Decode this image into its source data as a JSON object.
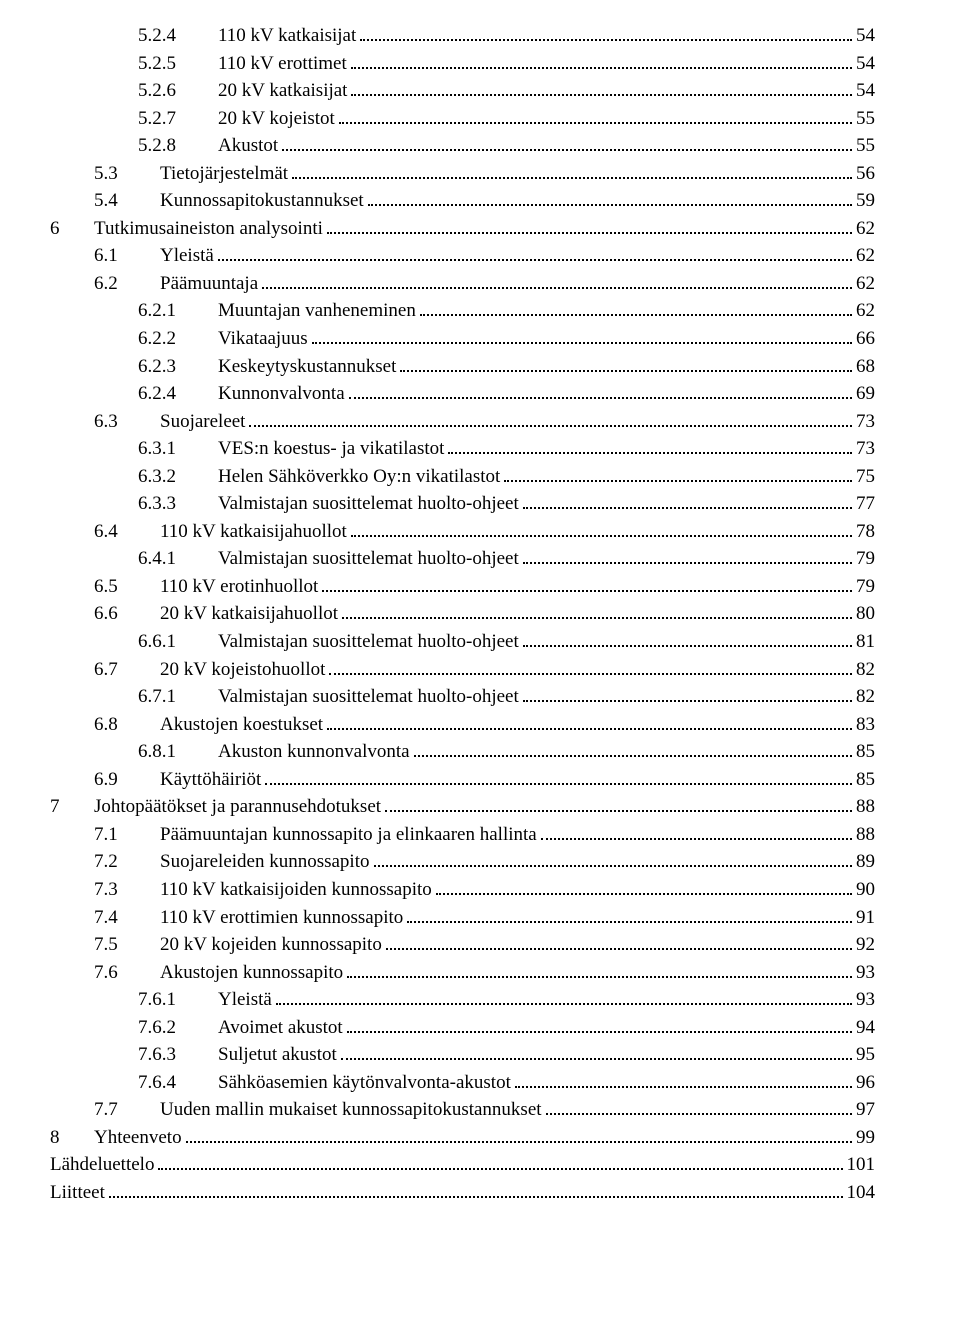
{
  "fontFamily": "Times New Roman",
  "baseFontSize": 19,
  "textColor": "#000000",
  "backgroundColor": "#ffffff",
  "toc": [
    {
      "level": 2,
      "num": "5.2.4",
      "title": "110 kV katkaisijat",
      "page": 54
    },
    {
      "level": 2,
      "num": "5.2.5",
      "title": "110 kV erottimet",
      "page": 54
    },
    {
      "level": 2,
      "num": "5.2.6",
      "title": "20 kV katkaisijat",
      "page": 54
    },
    {
      "level": 2,
      "num": "5.2.7",
      "title": "20 kV kojeistot",
      "page": 55
    },
    {
      "level": 2,
      "num": "5.2.8",
      "title": "Akustot",
      "page": 55
    },
    {
      "level": 1,
      "num": "5.3",
      "title": "Tietojärjestelmät",
      "page": 56
    },
    {
      "level": 1,
      "num": "5.4",
      "title": "Kunnossapitokustannukset",
      "page": 59
    },
    {
      "level": 0,
      "num": "6",
      "title": "Tutkimusaineiston analysointi",
      "page": 62
    },
    {
      "level": 1,
      "num": "6.1",
      "title": "Yleistä",
      "page": 62
    },
    {
      "level": 1,
      "num": "6.2",
      "title": "Päämuuntaja",
      "page": 62
    },
    {
      "level": 2,
      "num": "6.2.1",
      "title": "Muuntajan vanheneminen",
      "page": 62
    },
    {
      "level": 2,
      "num": "6.2.2",
      "title": "Vikataajuus",
      "page": 66
    },
    {
      "level": 2,
      "num": "6.2.3",
      "title": "Keskeytyskustannukset",
      "page": 68
    },
    {
      "level": 2,
      "num": "6.2.4",
      "title": "Kunnonvalvonta",
      "page": 69
    },
    {
      "level": 1,
      "num": "6.3",
      "title": "Suojareleet",
      "page": 73
    },
    {
      "level": 2,
      "num": "6.3.1",
      "title": "VES:n koestus- ja vikatilastot",
      "page": 73
    },
    {
      "level": 2,
      "num": "6.3.2",
      "title": "Helen Sähköverkko Oy:n vikatilastot",
      "page": 75
    },
    {
      "level": 2,
      "num": "6.3.3",
      "title": "Valmistajan suosittelemat huolto-ohjeet",
      "page": 77
    },
    {
      "level": 1,
      "num": "6.4",
      "title": "110 kV katkaisijahuollot",
      "page": 78
    },
    {
      "level": 2,
      "num": "6.4.1",
      "title": "Valmistajan suosittelemat huolto-ohjeet",
      "page": 79
    },
    {
      "level": 1,
      "num": "6.5",
      "title": "110 kV erotinhuollot",
      "page": 79
    },
    {
      "level": 1,
      "num": "6.6",
      "title": "20 kV katkaisijahuollot",
      "page": 80
    },
    {
      "level": 2,
      "num": "6.6.1",
      "title": "Valmistajan suosittelemat huolto-ohjeet",
      "page": 81
    },
    {
      "level": 1,
      "num": "6.7",
      "title": "20 kV kojeistohuollot",
      "page": 82
    },
    {
      "level": 2,
      "num": "6.7.1",
      "title": "Valmistajan suosittelemat huolto-ohjeet",
      "page": 82
    },
    {
      "level": 1,
      "num": "6.8",
      "title": "Akustojen koestukset",
      "page": 83
    },
    {
      "level": 2,
      "num": "6.8.1",
      "title": "Akuston kunnonvalvonta",
      "page": 85
    },
    {
      "level": 1,
      "num": "6.9",
      "title": "Käyttöhäiriöt",
      "page": 85
    },
    {
      "level": 0,
      "num": "7",
      "title": "Johtopäätökset ja parannusehdotukset",
      "page": 88
    },
    {
      "level": 1,
      "num": "7.1",
      "title": "Päämuuntajan kunnossapito ja elinkaaren hallinta",
      "page": 88
    },
    {
      "level": 1,
      "num": "7.2",
      "title": "Suojareleiden kunnossapito",
      "page": 89
    },
    {
      "level": 1,
      "num": "7.3",
      "title": "110 kV katkaisijoiden kunnossapito",
      "page": 90
    },
    {
      "level": 1,
      "num": "7.4",
      "title": "110 kV erottimien kunnossapito",
      "page": 91
    },
    {
      "level": 1,
      "num": "7.5",
      "title": "20 kV kojeiden kunnossapito",
      "page": 92
    },
    {
      "level": 1,
      "num": "7.6",
      "title": "Akustojen kunnossapito",
      "page": 93
    },
    {
      "level": 2,
      "num": "7.6.1",
      "title": "Yleistä",
      "page": 93
    },
    {
      "level": 2,
      "num": "7.6.2",
      "title": "Avoimet akustot",
      "page": 94
    },
    {
      "level": 2,
      "num": "7.6.3",
      "title": "Suljetut akustot",
      "page": 95
    },
    {
      "level": 2,
      "num": "7.6.4",
      "title": "Sähköasemien käytönvalvonta-akustot",
      "page": 96
    },
    {
      "level": 1,
      "num": "7.7",
      "title": "Uuden mallin mukaiset kunnossapitokustannukset",
      "page": 97
    },
    {
      "level": 0,
      "num": "8",
      "title": "Yhteenveto",
      "page": 99
    },
    {
      "level": 0,
      "num": "",
      "title": "Lähdeluettelo",
      "page": 101
    },
    {
      "level": 0,
      "num": "",
      "title": "Liitteet",
      "page": 104
    }
  ]
}
